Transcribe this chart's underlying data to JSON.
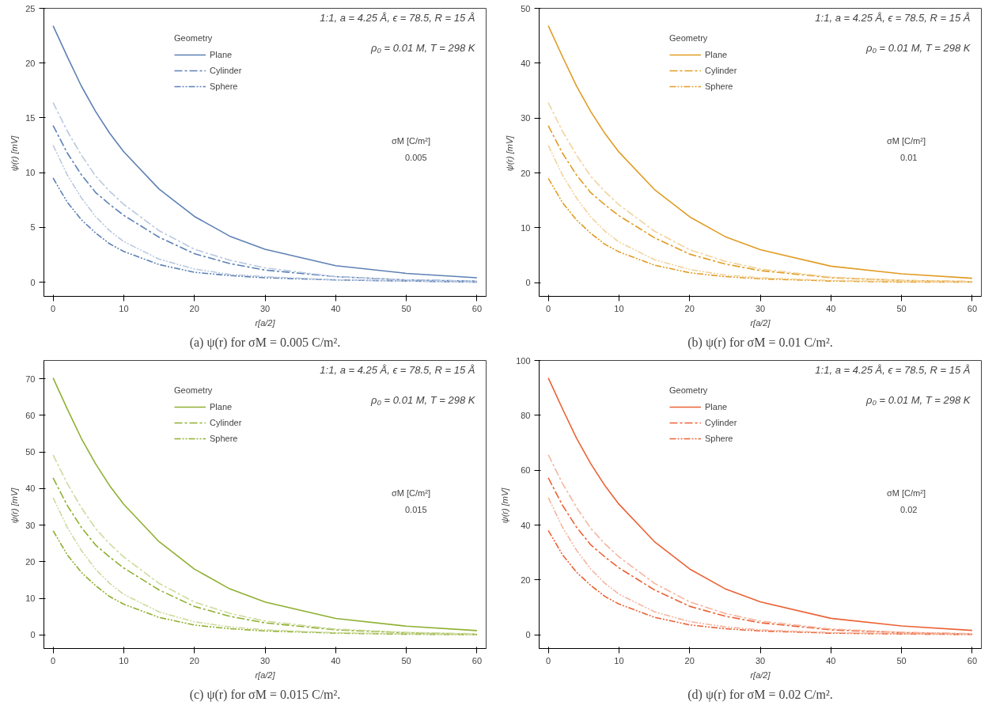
{
  "chart_data": [
    {
      "type": "line",
      "title": "(a) ψ(r) for σM = 0.005 C/m².",
      "xlabel": "r[a/2]",
      "ylabel": "ψ(r)  [mV]",
      "legend_title": "Geometry",
      "legend": "top",
      "grid": false,
      "annotations": [
        "1:1, a = 4.25 Å, ϵ = 78.5, R = 15 Å",
        "ρ₀ = 0.01 M, T = 298 K",
        "σM [C/m²]",
        "0.005"
      ],
      "xlim": [
        -1.3,
        61.3
      ],
      "xticks": [
        0,
        10,
        20,
        30,
        40,
        50,
        60
      ],
      "ylim": [
        -1.3,
        25
      ],
      "yticks": [
        0,
        5,
        10,
        15,
        20,
        25
      ],
      "x": [
        0,
        2,
        4,
        6,
        8,
        10,
        15,
        20,
        25,
        30,
        40,
        50,
        60
      ],
      "series": [
        {
          "name": "Plane",
          "color": "#5e81b5",
          "line_style": "solid",
          "values": [
            23.4,
            20.6,
            17.9,
            15.6,
            13.6,
            11.9,
            8.5,
            6.0,
            4.2,
            3.0,
            1.5,
            0.8,
            0.4
          ]
        },
        {
          "name": "Cylinder",
          "color": "#5e81b5",
          "line_style": "dashdot",
          "values": [
            14.3,
            11.8,
            9.8,
            8.2,
            7.1,
            6.1,
            4.1,
            2.6,
            1.7,
            1.1,
            0.5,
            0.2,
            0.1
          ]
        },
        {
          "color": "#b9c8e0",
          "line_style": "dashdot",
          "values": [
            16.4,
            13.8,
            11.6,
            9.7,
            8.3,
            7.1,
            4.7,
            3.0,
            2.0,
            1.3,
            0.5,
            0.2,
            0.1
          ]
        },
        {
          "name": "Sphere",
          "color": "#5e81b5",
          "line_style": "dashdotdot",
          "values": [
            9.5,
            7.3,
            5.7,
            4.5,
            3.5,
            2.8,
            1.6,
            0.9,
            0.6,
            0.4,
            0.2,
            0.1,
            0.0
          ]
        },
        {
          "color": "#b9c8e0",
          "line_style": "dashdotdot",
          "values": [
            12.5,
            9.8,
            7.7,
            6.0,
            4.7,
            3.7,
            2.1,
            1.2,
            0.7,
            0.5,
            0.2,
            0.1,
            0.0
          ]
        }
      ]
    },
    {
      "type": "line",
      "title": "(b) ψ(r) for σM = 0.01 C/m².",
      "xlabel": "r[a/2]",
      "ylabel": "ψ(r)  [mV]",
      "legend_title": "Geometry",
      "legend": "top",
      "grid": false,
      "annotations": [
        "1:1, a = 4.25 Å, ϵ = 78.5, R = 15 Å",
        "ρ₀ = 0.01 M, T = 298 K",
        "σM [C/m²]",
        "0.01"
      ],
      "xlim": [
        -1.3,
        61.3
      ],
      "xticks": [
        0,
        10,
        20,
        30,
        40,
        50,
        60
      ],
      "ylim": [
        -2.5,
        50
      ],
      "yticks": [
        0,
        10,
        20,
        30,
        40,
        50
      ],
      "x": [
        0,
        2,
        4,
        6,
        8,
        10,
        15,
        20,
        25,
        30,
        40,
        50,
        60
      ],
      "series": [
        {
          "name": "Plane",
          "color": "#e19c24",
          "line_style": "solid",
          "values": [
            46.8,
            41.2,
            35.8,
            31.2,
            27.2,
            23.8,
            17.0,
            12.0,
            8.4,
            6.0,
            3.0,
            1.6,
            0.8
          ]
        },
        {
          "name": "Cylinder",
          "color": "#e19c24",
          "line_style": "dashdot",
          "values": [
            28.6,
            23.6,
            19.6,
            16.4,
            14.2,
            12.2,
            8.2,
            5.2,
            3.4,
            2.2,
            0.9,
            0.4,
            0.2
          ]
        },
        {
          "color": "#f2d39c",
          "line_style": "dashdot",
          "values": [
            32.8,
            27.6,
            23.2,
            19.4,
            16.6,
            14.2,
            9.4,
            6.0,
            3.9,
            2.5,
            1.0,
            0.4,
            0.2
          ]
        },
        {
          "name": "Sphere",
          "color": "#e19c24",
          "line_style": "dashdotdot",
          "values": [
            19.0,
            14.6,
            11.4,
            9.0,
            7.0,
            5.6,
            3.2,
            1.8,
            1.1,
            0.7,
            0.3,
            0.1,
            0.1
          ]
        },
        {
          "color": "#f2d39c",
          "line_style": "dashdotdot",
          "values": [
            25.0,
            19.6,
            15.4,
            12.0,
            9.4,
            7.4,
            4.2,
            2.4,
            1.4,
            0.9,
            0.4,
            0.2,
            0.1
          ]
        }
      ]
    },
    {
      "type": "line",
      "title": "(c) ψ(r) for σM = 0.015 C/m².",
      "xlabel": "r[a/2]",
      "ylabel": "ψ(r)  [mV]",
      "legend_title": "Geometry",
      "legend": "top",
      "grid": false,
      "annotations": [
        "1:1, a = 4.25 Å, ϵ = 78.5, R = 15 Å",
        "ρ₀ = 0.01 M, T = 298 K",
        "σM [C/m²]",
        "0.015"
      ],
      "xlim": [
        -1.3,
        61.3
      ],
      "xticks": [
        0,
        10,
        20,
        30,
        40,
        50,
        60
      ],
      "ylim": [
        -3.7,
        75
      ],
      "yticks": [
        0,
        10,
        20,
        30,
        40,
        50,
        60,
        70
      ],
      "x": [
        0,
        2,
        4,
        6,
        8,
        10,
        15,
        20,
        25,
        30,
        40,
        50,
        60
      ],
      "series": [
        {
          "name": "Plane",
          "color": "#8fb032",
          "line_style": "solid",
          "values": [
            70.2,
            61.8,
            53.7,
            46.8,
            40.8,
            35.7,
            25.5,
            18.0,
            12.6,
            9.0,
            4.5,
            2.4,
            1.2
          ]
        },
        {
          "name": "Cylinder",
          "color": "#8fb032",
          "line_style": "dashdot",
          "values": [
            42.9,
            35.4,
            29.4,
            24.6,
            21.3,
            18.3,
            12.3,
            7.8,
            5.1,
            3.3,
            1.4,
            0.6,
            0.2
          ]
        },
        {
          "color": "#cddb9e",
          "line_style": "dashdot",
          "values": [
            49.2,
            41.4,
            34.8,
            29.1,
            24.9,
            21.3,
            14.1,
            9.0,
            5.9,
            3.8,
            1.6,
            0.7,
            0.3
          ]
        },
        {
          "name": "Sphere",
          "color": "#8fb032",
          "line_style": "dashdotdot",
          "values": [
            28.5,
            21.9,
            17.1,
            13.5,
            10.5,
            8.4,
            4.8,
            2.7,
            1.7,
            1.1,
            0.5,
            0.2,
            0.1
          ]
        },
        {
          "color": "#cddb9e",
          "line_style": "dashdotdot",
          "values": [
            37.5,
            29.4,
            23.1,
            18.0,
            14.1,
            11.1,
            6.3,
            3.6,
            2.2,
            1.4,
            0.6,
            0.3,
            0.1
          ]
        }
      ]
    },
    {
      "type": "line",
      "title": "(d) ψ(r) for σM = 0.02 C/m².",
      "xlabel": "r[a/2]",
      "ylabel": "ψ(r)  [mV]",
      "legend_title": "Geometry",
      "legend": "top",
      "grid": false,
      "annotations": [
        "1:1, a = 4.25 Å, ϵ = 78.5, R = 15 Å",
        "ρ₀ = 0.01 M, T = 298 K",
        "σM [C/m²]",
        "0.02"
      ],
      "xlim": [
        -1.3,
        61.3
      ],
      "xticks": [
        0,
        10,
        20,
        30,
        40,
        50,
        60
      ],
      "ylim": [
        -5,
        100
      ],
      "yticks": [
        0,
        20,
        40,
        60,
        80,
        100
      ],
      "x": [
        0,
        2,
        4,
        6,
        8,
        10,
        15,
        20,
        25,
        30,
        40,
        50,
        60
      ],
      "series": [
        {
          "name": "Plane",
          "color": "#eb6235",
          "line_style": "solid",
          "values": [
            93.6,
            82.4,
            71.6,
            62.4,
            54.4,
            47.6,
            34.0,
            24.0,
            16.8,
            12.0,
            6.0,
            3.2,
            1.6
          ]
        },
        {
          "name": "Cylinder",
          "color": "#eb6235",
          "line_style": "dashdot",
          "values": [
            57.2,
            47.2,
            39.2,
            32.8,
            28.4,
            24.4,
            16.4,
            10.4,
            6.8,
            4.4,
            1.8,
            0.8,
            0.3
          ]
        },
        {
          "color": "#f5b5a0",
          "line_style": "dashdot",
          "values": [
            65.6,
            55.2,
            46.4,
            38.8,
            33.2,
            28.4,
            18.8,
            12.0,
            7.8,
            5.0,
            2.1,
            0.9,
            0.4
          ]
        },
        {
          "name": "Sphere",
          "color": "#eb6235",
          "line_style": "dashdotdot",
          "values": [
            38.0,
            29.2,
            22.8,
            18.0,
            14.0,
            11.2,
            6.4,
            3.6,
            2.2,
            1.4,
            0.6,
            0.3,
            0.1
          ]
        },
        {
          "color": "#f5b5a0",
          "line_style": "dashdotdot",
          "values": [
            50.0,
            39.2,
            30.8,
            24.0,
            18.8,
            14.8,
            8.4,
            4.8,
            2.9,
            1.8,
            0.8,
            0.4,
            0.2
          ]
        }
      ]
    }
  ]
}
